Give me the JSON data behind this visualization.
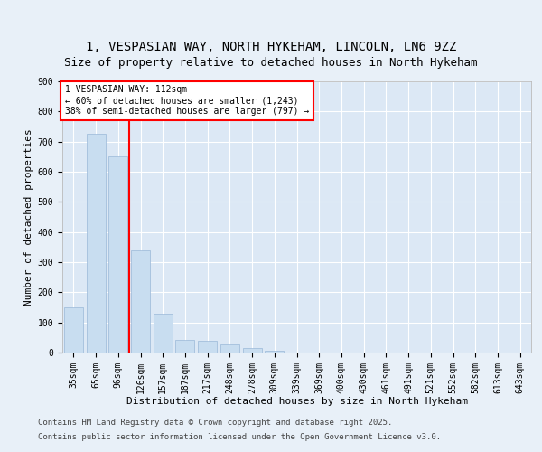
{
  "title1": "1, VESPASIAN WAY, NORTH HYKEHAM, LINCOLN, LN6 9ZZ",
  "title2": "Size of property relative to detached houses in North Hykeham",
  "xlabel": "Distribution of detached houses by size in North Hykeham",
  "ylabel": "Number of detached properties",
  "categories": [
    "35sqm",
    "65sqm",
    "96sqm",
    "126sqm",
    "157sqm",
    "187sqm",
    "217sqm",
    "248sqm",
    "278sqm",
    "309sqm",
    "339sqm",
    "369sqm",
    "400sqm",
    "430sqm",
    "461sqm",
    "491sqm",
    "521sqm",
    "552sqm",
    "582sqm",
    "613sqm",
    "643sqm"
  ],
  "values": [
    150,
    725,
    650,
    340,
    128,
    42,
    38,
    28,
    14,
    5,
    0,
    0,
    0,
    0,
    0,
    0,
    0,
    0,
    0,
    0,
    0
  ],
  "bar_color": "#c8ddf0",
  "bar_edge_color": "#9ab8d8",
  "vline_x": 2.5,
  "vline_color": "red",
  "annotation_text": "1 VESPASIAN WAY: 112sqm\n← 60% of detached houses are smaller (1,243)\n38% of semi-detached houses are larger (797) →",
  "annotation_box_color": "white",
  "annotation_box_edge": "red",
  "ylim": [
    0,
    900
  ],
  "yticks": [
    0,
    100,
    200,
    300,
    400,
    500,
    600,
    700,
    800,
    900
  ],
  "background_color": "#e8f0f8",
  "plot_background": "#dce8f5",
  "footer_line1": "Contains HM Land Registry data © Crown copyright and database right 2025.",
  "footer_line2": "Contains public sector information licensed under the Open Government Licence v3.0.",
  "title_fontsize": 10,
  "subtitle_fontsize": 9,
  "footer_fontsize": 6.5,
  "axis_label_fontsize": 8,
  "tick_fontsize": 7
}
